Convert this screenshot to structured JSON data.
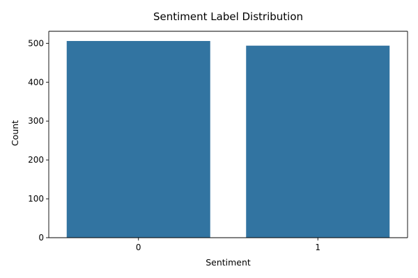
{
  "chart_data": {
    "type": "bar",
    "title": "Sentiment Label Distribution",
    "xlabel": "Sentiment",
    "ylabel": "Count",
    "categories": [
      "0",
      "1"
    ],
    "values": [
      506,
      494
    ],
    "ylim": [
      0,
      531
    ],
    "yticks": [
      0,
      100,
      200,
      300,
      400,
      500
    ],
    "bar_color": "#3274a1",
    "grid": false,
    "legend": "none"
  }
}
